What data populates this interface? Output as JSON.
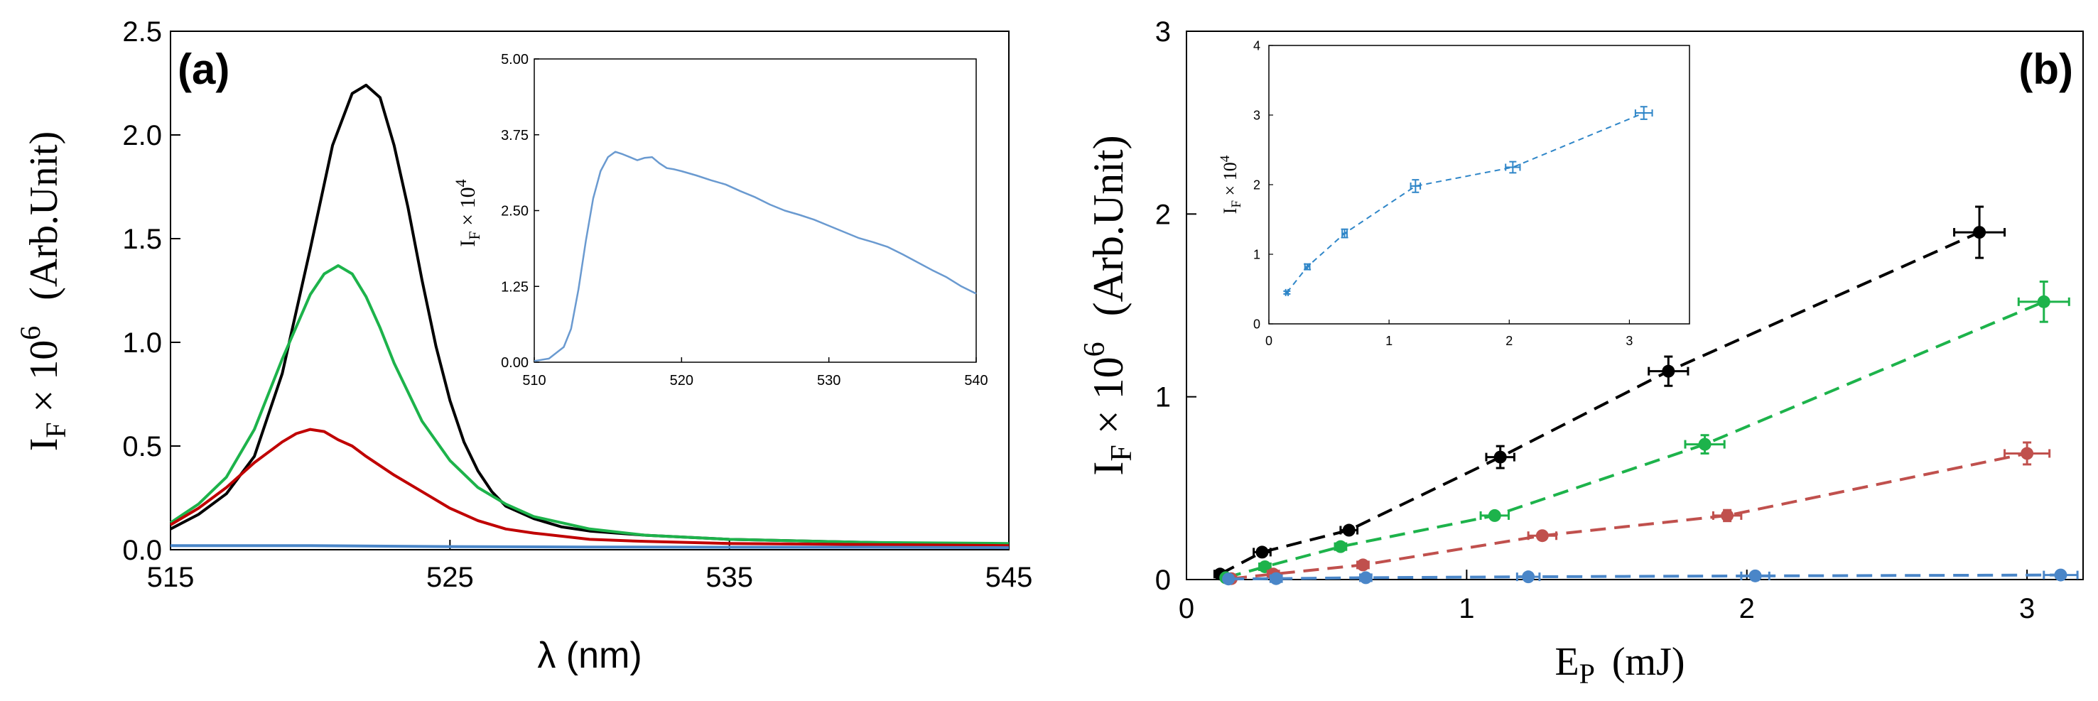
{
  "chart_data": [
    {
      "id": "a",
      "type": "line",
      "panel_label": "(a)",
      "xlabel": "λ (nm)",
      "ylabel": {
        "base": "I",
        "sub": "F",
        "mid": " × 10",
        "sup": "6",
        "unit": "(Arb.Unit)"
      },
      "xlim": [
        515,
        545
      ],
      "ylim": [
        0,
        2.5
      ],
      "xticks": [
        515,
        525,
        535,
        545
      ],
      "yticks": [
        0.0,
        0.5,
        1.0,
        1.5,
        2.0,
        2.5
      ],
      "ytick_labels": [
        "0.0",
        "0.5",
        "1.0",
        "1.5",
        "2.0",
        "2.5"
      ],
      "series": [
        {
          "name": "black",
          "color": "#000000",
          "x": [
            515,
            516,
            517,
            518,
            519,
            520,
            520.8,
            521.5,
            522,
            522.5,
            523,
            523.5,
            524,
            524.5,
            525,
            525.5,
            526,
            526.5,
            527,
            528,
            529,
            530,
            532,
            535,
            540,
            545
          ],
          "y": [
            0.1,
            0.17,
            0.27,
            0.45,
            0.85,
            1.45,
            1.95,
            2.2,
            2.24,
            2.18,
            1.95,
            1.65,
            1.3,
            0.98,
            0.72,
            0.52,
            0.38,
            0.28,
            0.21,
            0.15,
            0.11,
            0.09,
            0.07,
            0.05,
            0.035,
            0.025
          ]
        },
        {
          "name": "green",
          "color": "#1db34b",
          "x": [
            515,
            516,
            517,
            518,
            519,
            520,
            520.5,
            521,
            521.5,
            522,
            522.5,
            523,
            524,
            525,
            526,
            527,
            528,
            530,
            532,
            535,
            540,
            545
          ],
          "y": [
            0.13,
            0.22,
            0.35,
            0.58,
            0.92,
            1.23,
            1.33,
            1.37,
            1.33,
            1.22,
            1.07,
            0.9,
            0.62,
            0.43,
            0.3,
            0.22,
            0.16,
            0.1,
            0.07,
            0.05,
            0.035,
            0.03
          ]
        },
        {
          "name": "red",
          "color": "#c00000",
          "x": [
            515,
            516,
            517,
            518,
            519,
            519.5,
            520,
            520.5,
            521,
            521.5,
            522,
            523,
            524,
            525,
            526,
            527,
            528,
            530,
            532,
            535,
            540,
            545
          ],
          "y": [
            0.12,
            0.2,
            0.3,
            0.42,
            0.52,
            0.56,
            0.58,
            0.57,
            0.53,
            0.5,
            0.45,
            0.36,
            0.28,
            0.2,
            0.14,
            0.1,
            0.08,
            0.05,
            0.04,
            0.03,
            0.025,
            0.02
          ]
        },
        {
          "name": "blue",
          "color": "#4a86c8",
          "x": [
            515,
            520,
            525,
            530,
            535,
            540,
            545
          ],
          "y": [
            0.02,
            0.02,
            0.015,
            0.013,
            0.012,
            0.012,
            0.01
          ]
        }
      ],
      "inset": {
        "type": "line",
        "ylabel": {
          "base": "I",
          "sub": "F",
          "mid": " × 10",
          "sup": "4"
        },
        "xlim": [
          510,
          540
        ],
        "ylim": [
          0,
          5
        ],
        "xticks": [
          510,
          520,
          530,
          540
        ],
        "yticks": [
          0,
          1.25,
          2.5,
          3.75,
          5
        ],
        "ytick_labels": [
          "0.00",
          "1.25",
          "2.50",
          "3.75",
          "5.00"
        ],
        "series": [
          {
            "name": "blue",
            "color": "#6a9ad0",
            "x": [
              510,
              511,
              512,
              512.5,
              513,
              513.5,
              514,
              514.5,
              515,
              515.5,
              516,
              516.5,
              517,
              517.5,
              518,
              518.5,
              519,
              519.5,
              520,
              521,
              522,
              523,
              524,
              525,
              526,
              527,
              528,
              529,
              530,
              531,
              532,
              533,
              534,
              535,
              536,
              537,
              538,
              539,
              540
            ],
            "y": [
              0.02,
              0.06,
              0.25,
              0.55,
              1.2,
              2.0,
              2.7,
              3.15,
              3.38,
              3.47,
              3.43,
              3.38,
              3.33,
              3.37,
              3.38,
              3.28,
              3.2,
              3.18,
              3.15,
              3.08,
              3.0,
              2.93,
              2.82,
              2.72,
              2.6,
              2.5,
              2.43,
              2.35,
              2.25,
              2.15,
              2.05,
              1.98,
              1.9,
              1.78,
              1.65,
              1.52,
              1.4,
              1.25,
              1.13
            ]
          }
        ]
      }
    },
    {
      "id": "b",
      "type": "scatter",
      "panel_label": "(b)",
      "xlabel": {
        "base": "E",
        "sub": "P",
        "unit": "(mJ)"
      },
      "ylabel": {
        "base": "I",
        "sub": "F",
        "mid": " × 10",
        "sup": "6",
        "unit": "(Arb.Unit)"
      },
      "xlim": [
        0,
        3.2
      ],
      "ylim": [
        0,
        3
      ],
      "xticks": [
        0,
        1,
        2,
        3
      ],
      "yticks": [
        0,
        1,
        2,
        3
      ],
      "ytick_labels": [
        "0",
        "1",
        "2",
        "3"
      ],
      "series": [
        {
          "name": "black",
          "color": "#000000",
          "x": [
            0.12,
            0.27,
            0.58,
            1.12,
            1.72,
            2.83
          ],
          "y": [
            0.03,
            0.15,
            0.27,
            0.67,
            1.14,
            1.9
          ],
          "xerr": [
            0.02,
            0.03,
            0.03,
            0.05,
            0.07,
            0.09
          ],
          "yerr": [
            0.01,
            0.02,
            0.02,
            0.06,
            0.08,
            0.14
          ]
        },
        {
          "name": "green",
          "color": "#1db34b",
          "x": [
            0.14,
            0.28,
            0.55,
            1.1,
            1.85,
            3.06
          ],
          "y": [
            0.01,
            0.07,
            0.18,
            0.35,
            0.74,
            1.52
          ],
          "xerr": [
            0.01,
            0.02,
            0.02,
            0.05,
            0.07,
            0.09
          ],
          "yerr": [
            0.01,
            0.01,
            0.01,
            0.02,
            0.05,
            0.11
          ]
        },
        {
          "name": "red",
          "color": "#c0504d",
          "x": [
            0.16,
            0.31,
            0.63,
            1.27,
            1.93,
            3.0
          ],
          "y": [
            0.005,
            0.03,
            0.08,
            0.24,
            0.35,
            0.69
          ],
          "xerr": [
            0.01,
            0.02,
            0.02,
            0.05,
            0.05,
            0.08
          ],
          "yerr": [
            0.005,
            0.01,
            0.01,
            0.02,
            0.03,
            0.06
          ]
        },
        {
          "name": "blue",
          "color": "#4a86c8",
          "x": [
            0.15,
            0.32,
            0.64,
            1.22,
            2.03,
            3.12
          ],
          "y": [
            0.003,
            0.005,
            0.01,
            0.015,
            0.02,
            0.025
          ],
          "xerr": [
            0.01,
            0.02,
            0.02,
            0.04,
            0.05,
            0.06
          ],
          "yerr": [
            0.002,
            0.002,
            0.003,
            0.005,
            0.005,
            0.006
          ]
        }
      ],
      "inset": {
        "type": "scatter",
        "ylabel": {
          "base": "I",
          "sub": "F",
          "mid": " × 10",
          "sup": "4"
        },
        "xlim": [
          0,
          3.5
        ],
        "ylim": [
          0,
          4
        ],
        "xticks": [
          0,
          1,
          2,
          3
        ],
        "yticks": [
          0,
          1,
          2,
          3,
          4
        ],
        "ytick_labels": [
          "0",
          "1",
          "2",
          "3",
          "4"
        ],
        "series": [
          {
            "name": "blue",
            "color": "#2f86c8",
            "x": [
              0.15,
              0.32,
              0.63,
              1.22,
              2.03,
              3.12
            ],
            "y": [
              0.45,
              0.82,
              1.3,
              1.98,
              2.25,
              3.03
            ],
            "xerr": [
              0.01,
              0.02,
              0.02,
              0.04,
              0.06,
              0.07
            ],
            "yerr": [
              0.02,
              0.04,
              0.06,
              0.09,
              0.08,
              0.09
            ]
          }
        ]
      }
    }
  ]
}
